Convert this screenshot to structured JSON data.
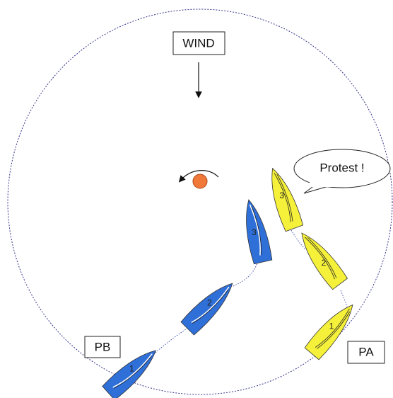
{
  "wind_label": "WIND",
  "callout": "Protest !",
  "boats": {
    "PB": {
      "label": "PB",
      "positions": [
        "1",
        "2",
        "3"
      ]
    },
    "PA": {
      "label": "PA",
      "positions": [
        "1",
        "2",
        "3"
      ]
    }
  }
}
